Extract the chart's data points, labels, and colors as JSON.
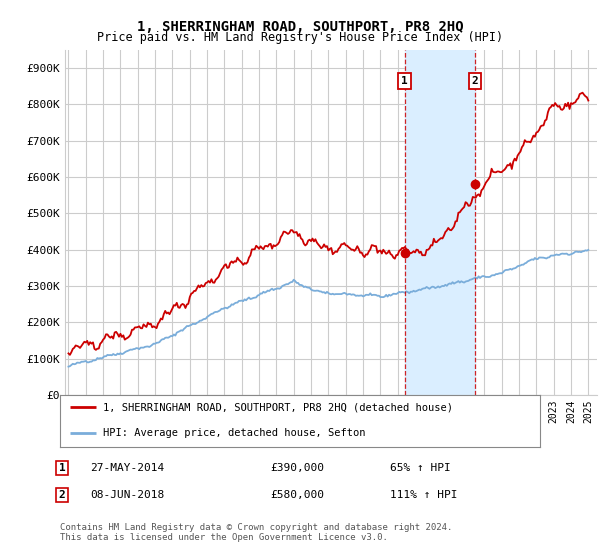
{
  "title": "1, SHERRINGHAM ROAD, SOUTHPORT, PR8 2HQ",
  "subtitle": "Price paid vs. HM Land Registry's House Price Index (HPI)",
  "ylabel_ticks": [
    "£0",
    "£100K",
    "£200K",
    "£300K",
    "£400K",
    "£500K",
    "£600K",
    "£700K",
    "£800K",
    "£900K"
  ],
  "ytick_values": [
    0,
    100000,
    200000,
    300000,
    400000,
    500000,
    600000,
    700000,
    800000,
    900000
  ],
  "ylim": [
    0,
    950000
  ],
  "xlim_start": 1994.8,
  "xlim_end": 2025.5,
  "sale1_x": 2014.4,
  "sale1_y": 390000,
  "sale2_x": 2018.45,
  "sale2_y": 580000,
  "shade_x1": 2014.4,
  "shade_x2": 2018.45,
  "legend_line1": "1, SHERRINGHAM ROAD, SOUTHPORT, PR8 2HQ (detached house)",
  "legend_line2": "HPI: Average price, detached house, Sefton",
  "label1_date": "27-MAY-2014",
  "label1_price": "£390,000",
  "label1_hpi": "65% ↑ HPI",
  "label2_date": "08-JUN-2018",
  "label2_price": "£580,000",
  "label2_hpi": "111% ↑ HPI",
  "footnote": "Contains HM Land Registry data © Crown copyright and database right 2024.\nThis data is licensed under the Open Government Licence v3.0.",
  "red_color": "#cc0000",
  "blue_color": "#7aadda",
  "shade_color": "#daeeff",
  "grid_color": "#cccccc",
  "background_color": "#ffffff"
}
